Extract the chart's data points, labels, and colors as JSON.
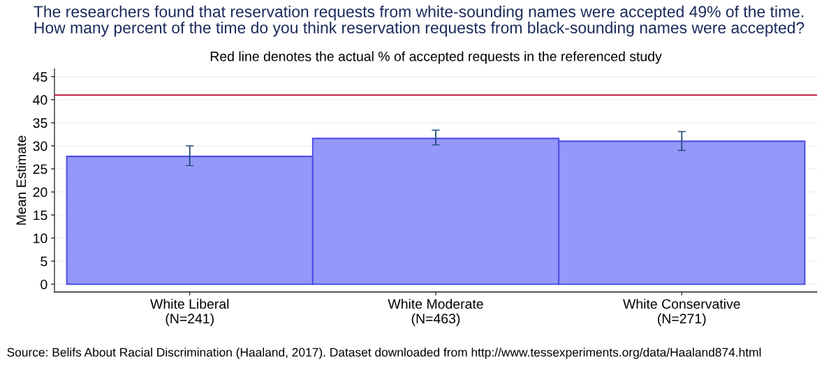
{
  "chart_data": {
    "type": "bar",
    "title": "The researchers found that reservation requests from white-sounding names were accepted 49% of the time.\nHow many percent of the time do you think reservation requests from black-sounding names were accepted?",
    "subtitle": "Red line denotes the actual % of accepted requests in the referenced study",
    "ylabel": "Mean Estimate",
    "categories": [
      "White Liberal\n(N=241)",
      "White Moderate\n(N=463)",
      "White Conservative\n(N=271)"
    ],
    "values": [
      27.7,
      31.6,
      31.0
    ],
    "errors": [
      [
        25.7,
        30.0
      ],
      [
        30.2,
        33.4
      ],
      [
        29.0,
        33.1
      ]
    ],
    "color": "#9598f8",
    "ylim": [
      -1.7,
      46.7
    ],
    "yticks": [
      0,
      5,
      10,
      15,
      20,
      25,
      30,
      35,
      40,
      45
    ],
    "grid": "y",
    "ref_lines": [
      {
        "axis": "y",
        "value": 41.0,
        "color": "#c0143c"
      }
    ],
    "annotations": [
      "Source: Belifs About Racial Discrimination (Haaland, 2017). Dataset downloaded from http://www.tessexperiments.org/data/Haaland874.html"
    ]
  }
}
